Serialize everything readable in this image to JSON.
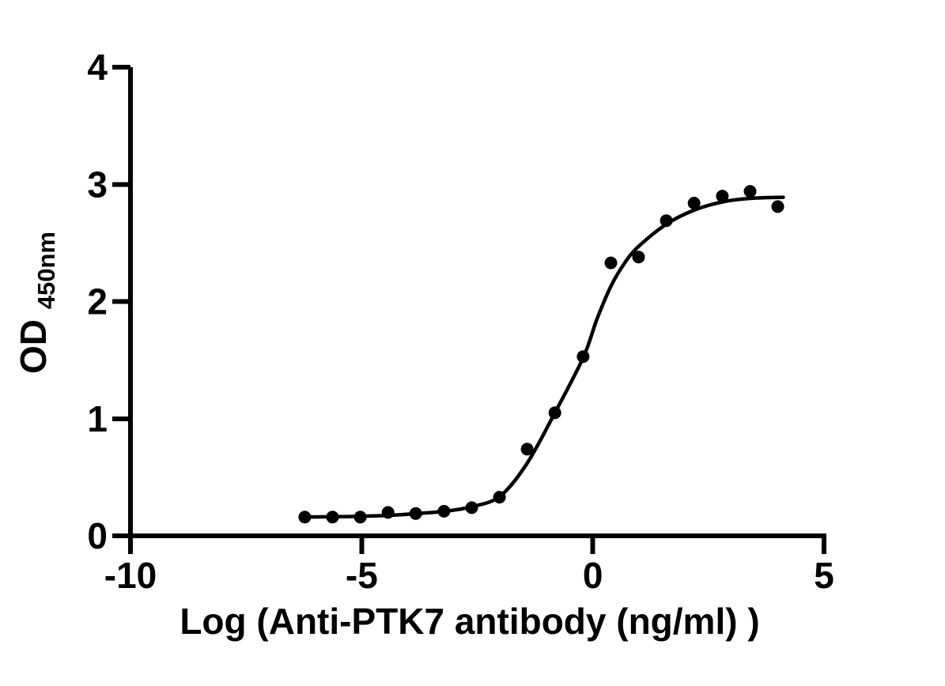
{
  "figure": {
    "background_color": "#ffffff",
    "foreground_color": "#000000"
  },
  "chart_data": {
    "type": "scatter",
    "title": "",
    "xlabel": "Log（Anti-PTK7 antibody（ng/ml） )",
    "ylabel": "OD",
    "ylabel_subscript": "450nm",
    "xlim": [
      -10,
      5
    ],
    "ylim": [
      0,
      4
    ],
    "x_ticks": [
      "-10",
      "-5",
      "0",
      "5"
    ],
    "y_ticks": [
      "0",
      "1",
      "2",
      "3",
      "4"
    ],
    "x_tick_values": [
      -10,
      -5,
      0,
      5
    ],
    "y_tick_values": [
      0,
      1,
      2,
      3,
      4
    ],
    "grid": false,
    "legend": false,
    "marker_color": "#000000",
    "curve_color": "#000000",
    "series": [
      {
        "marker": "circle",
        "x": [
          -6.23,
          -5.63,
          -5.03,
          -4.43,
          -3.83,
          -3.22,
          -2.62,
          -2.02,
          -1.42,
          -0.82,
          -0.21,
          0.39,
          0.99,
          1.59,
          2.19,
          2.8,
          3.4,
          4.0
        ],
        "y": [
          0.16,
          0.16,
          0.16,
          0.2,
          0.19,
          0.21,
          0.24,
          0.33,
          0.74,
          1.05,
          1.53,
          2.33,
          2.38,
          2.69,
          2.84,
          2.9,
          2.94,
          2.81
        ]
      }
    ],
    "fit_curve": {
      "shape": "sigmoidal-4pl",
      "bottom_plateau": 0.16,
      "top_plateau": 2.89,
      "x": [
        -6.3,
        -5.6,
        -5.0,
        -4.4,
        -3.8,
        -3.2,
        -2.6,
        -2.0,
        -1.42,
        -0.82,
        -0.21,
        0.09,
        0.39,
        0.69,
        0.99,
        1.59,
        2.19,
        2.8,
        3.4,
        4.12
      ],
      "y": [
        0.16,
        0.163,
        0.167,
        0.175,
        0.19,
        0.21,
        0.25,
        0.34,
        0.62,
        1.05,
        1.52,
        1.85,
        2.13,
        2.33,
        2.47,
        2.66,
        2.78,
        2.85,
        2.88,
        2.89
      ]
    }
  }
}
